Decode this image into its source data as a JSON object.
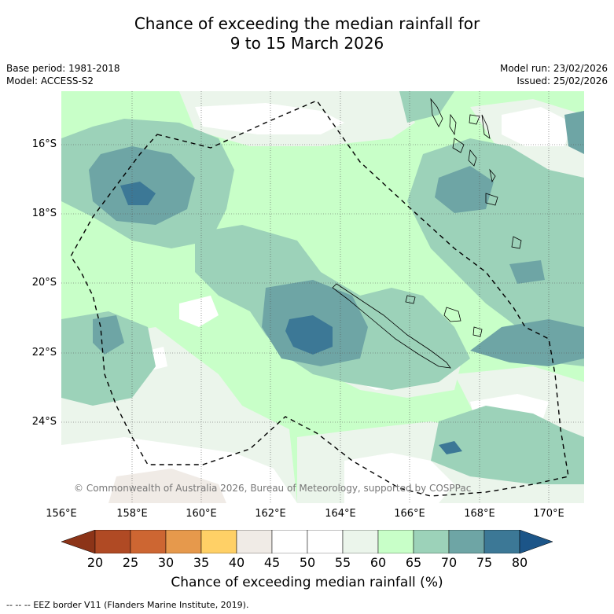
{
  "title": {
    "line1": "Chance of exceeding the median rainfall for",
    "line2": "9 to 15 March 2026"
  },
  "meta": {
    "base_period": "Base period: 1981-2018",
    "model": "Model: ACCESS-S2",
    "model_run": "Model run: 23/02/2026",
    "issued": "Issued: 25/02/2026"
  },
  "map": {
    "lat_labels": [
      "16°S",
      "18°S",
      "20°S",
      "22°S",
      "24°S"
    ],
    "lon_labels": [
      "156°E",
      "158°E",
      "160°E",
      "162°E",
      "164°E",
      "166°E",
      "168°E",
      "170°E"
    ],
    "copyright": "© Commonwealth of Australia 2026, Bureau of Meteorology, supported by COSPPac"
  },
  "colorbar": {
    "title": "Chance of exceeding median rainfall (%)",
    "ticks": [
      "20",
      "25",
      "30",
      "35",
      "40",
      "45",
      "50",
      "55",
      "60",
      "65",
      "70",
      "75",
      "80"
    ],
    "colors": {
      "low_extend": "#8c3418",
      "20-25": "#b04a24",
      "25-30": "#cd6632",
      "30-35": "#e6994c",
      "35-40": "#ffd066",
      "40-45": "#f0ebe6",
      "45-50": "#ffffff",
      "50-55": "#ffffff",
      "55-60": "#ebf5eb",
      "60-65": "#c8ffc8",
      "65-70": "#9cd2b9",
      "70-75": "#6ea5a5",
      "75-80": "#3c7896",
      "high_extend": "#1c5588"
    }
  },
  "legend": {
    "eez_symbol": "--  --  --",
    "eez_text": "EEZ border V11 (Flanders Marine Institute, 2019)."
  }
}
